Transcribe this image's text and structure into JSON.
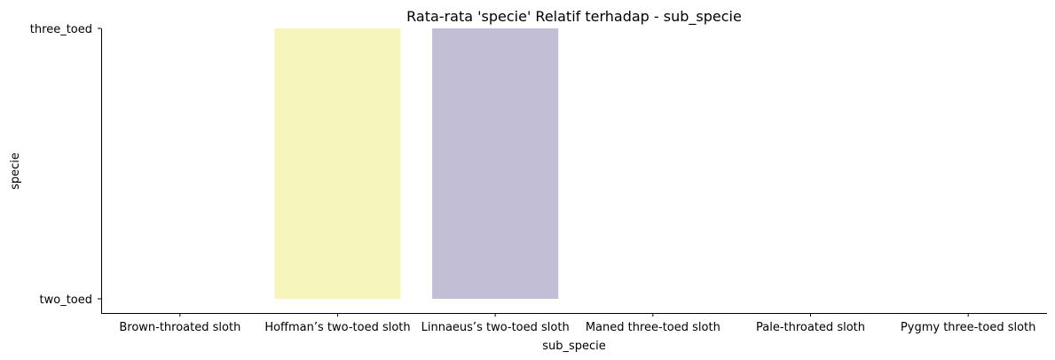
{
  "chart_data": {
    "type": "bar",
    "title": "Rata-rata 'specie' Relatif terhadap - sub_specie",
    "xlabel": "sub_specie",
    "ylabel": "specie",
    "categories": [
      "Brown-throated sloth",
      "Hoffman’s two-toed sloth",
      "Linnaeus’s two-toed sloth",
      "Maned three-toed sloth",
      "Pale-throated sloth",
      "Pygmy three-toed sloth"
    ],
    "y_categories": [
      "two_toed",
      "three_toed"
    ],
    "values": [
      "two_toed",
      "three_toed",
      "three_toed",
      "two_toed",
      "two_toed",
      "two_toed"
    ],
    "bar_colors": [
      "#8dd3c7",
      "#f5f5bc",
      "#c1bed6",
      "#fb8072",
      "#80b1d3",
      "#fdb462"
    ],
    "grid": false,
    "legend": "none"
  }
}
